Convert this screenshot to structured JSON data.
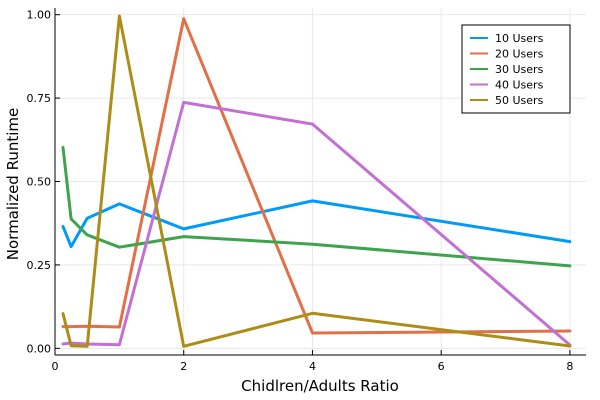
{
  "chart_data": {
    "type": "line",
    "title": "",
    "xlabel": "Chidlren/Adults Ratio",
    "ylabel": "Normalized Runtime",
    "xlim": [
      0,
      8.25
    ],
    "ylim": [
      -0.02,
      1.02
    ],
    "xticks": [
      0,
      2,
      4,
      6,
      8
    ],
    "yticks": [
      0.0,
      0.25,
      0.5,
      0.75,
      1.0
    ],
    "xtick_labels": [
      "0",
      "2",
      "4",
      "6",
      "8"
    ],
    "ytick_labels": [
      "0.00",
      "0.25",
      "0.50",
      "0.75",
      "1.00"
    ],
    "grid": true,
    "legend_position": "top-right",
    "series": [
      {
        "name": "10 Users",
        "color": "#009af9",
        "x": [
          0.125,
          0.25,
          0.5,
          1,
          2,
          4,
          8
        ],
        "y": [
          0.365,
          0.305,
          0.39,
          0.433,
          0.358,
          0.442,
          0.32
        ]
      },
      {
        "name": "20 Users",
        "color": "#e26f46",
        "x": [
          0.125,
          0.25,
          0.5,
          1,
          2,
          4,
          8
        ],
        "y": [
          0.065,
          0.065,
          0.066,
          0.064,
          0.988,
          0.046,
          0.052
        ]
      },
      {
        "name": "30 Users",
        "color": "#3da44d",
        "x": [
          0.125,
          0.25,
          0.5,
          1,
          2,
          4,
          8
        ],
        "y": [
          0.602,
          0.388,
          0.34,
          0.303,
          0.335,
          0.312,
          0.247
        ]
      },
      {
        "name": "40 Users",
        "color": "#c271d2",
        "x": [
          0.125,
          0.25,
          0.5,
          1,
          2,
          4,
          8
        ],
        "y": [
          0.013,
          0.016,
          0.013,
          0.011,
          0.737,
          0.672,
          0.01
        ]
      },
      {
        "name": "50 Users",
        "color": "#ac8d18",
        "x": [
          0.125,
          0.25,
          0.5,
          1,
          2,
          4,
          8
        ],
        "y": [
          0.104,
          0.008,
          0.006,
          0.996,
          0.006,
          0.105,
          0.007
        ]
      }
    ]
  }
}
